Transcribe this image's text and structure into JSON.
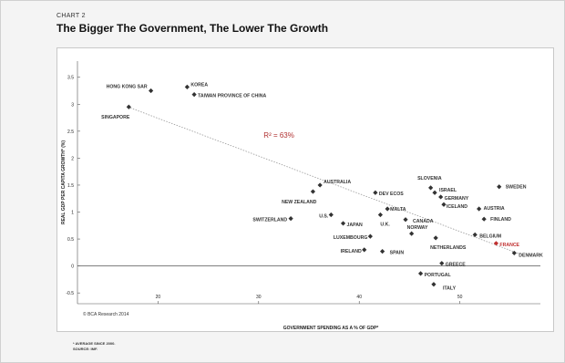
{
  "chart_label": "CHART 2",
  "title": "The Bigger The Government, The Lower The Growth",
  "credit": "© BCA Research 2014",
  "footnotes": [
    "* AVERAGE SINCE 2000.",
    "SOURCE: IMF."
  ],
  "chart_data": {
    "type": "scatter",
    "xlabel": "GOVERNMENT SPENDING AS A % OF GDP*",
    "ylabel": "REAL GDP PER CAPITA GROWTH* (%)",
    "xlim": [
      12,
      58
    ],
    "ylim": [
      -0.7,
      3.8
    ],
    "xticks": [
      20,
      30,
      40,
      50
    ],
    "yticks": [
      {
        "v": 3.5,
        "label": "3.5"
      },
      {
        "v": 3,
        "label": "3"
      },
      {
        "v": 2.5,
        "label": "2.5"
      },
      {
        "v": 2,
        "label": "2"
      },
      {
        "v": 1.5,
        "label": "1.5"
      },
      {
        "v": 1,
        "label": "1"
      },
      {
        "v": 0.5,
        "label": "0.5"
      },
      {
        "v": 0,
        "label": "0"
      },
      {
        "v": -0.5,
        "label": "-0.5"
      }
    ],
    "annotation": "R² = 63%",
    "annotation_color": "#b03030",
    "highlight_color": "#c03030",
    "point_color": "#333333",
    "trendline": {
      "x": [
        17,
        56
      ],
      "y": [
        2.95,
        0.22
      ]
    },
    "points": [
      {
        "label": "HONG KONG SAR",
        "x": 19.3,
        "y": 3.25,
        "anchor": "end",
        "dx": -4,
        "dy": -3
      },
      {
        "label": "KOREA",
        "x": 22.9,
        "y": 3.32,
        "anchor": "start",
        "dx": 4,
        "dy": -1
      },
      {
        "label": "TAIWAN PROVINCE OF CHINA",
        "x": 23.6,
        "y": 3.18,
        "anchor": "start",
        "dx": 4,
        "dy": 3
      },
      {
        "label": "SINGAPORE",
        "x": 17.1,
        "y": 2.95,
        "anchor": "end",
        "dx": 1,
        "dy": 13
      },
      {
        "label": "AUSTRALIA",
        "x": 36.1,
        "y": 1.5,
        "anchor": "start",
        "dx": 4,
        "dy": -2
      },
      {
        "label": "NEW ZEALAND",
        "x": 35.4,
        "y": 1.38,
        "anchor": "end",
        "dx": 4,
        "dy": 13
      },
      {
        "label": "SLOVENIA",
        "x": 47.1,
        "y": 1.45,
        "anchor": "end",
        "dx": 12,
        "dy": -9
      },
      {
        "label": "DEV ECOS",
        "x": 41.6,
        "y": 1.36,
        "anchor": "start",
        "dx": 4,
        "dy": 3
      },
      {
        "label": "ISRAEL",
        "x": 47.5,
        "y": 1.36,
        "anchor": "start",
        "dx": 5,
        "dy": -1
      },
      {
        "label": "GERMANY",
        "x": 48.1,
        "y": 1.28,
        "anchor": "start",
        "dx": 4,
        "dy": 3
      },
      {
        "label": "ICELAND",
        "x": 48.4,
        "y": 1.14,
        "anchor": "start",
        "dx": 3,
        "dy": 4
      },
      {
        "label": "MALTA",
        "x": 42.8,
        "y": 1.06,
        "anchor": "start",
        "dx": 3,
        "dy": 2
      },
      {
        "label": "SWEDEN",
        "x": 53.9,
        "y": 1.47,
        "anchor": "start",
        "dx": 7,
        "dy": 2
      },
      {
        "label": "AUSTRIA",
        "x": 51.9,
        "y": 1.06,
        "anchor": "start",
        "dx": 5,
        "dy": 1
      },
      {
        "label": "FINLAND",
        "x": 52.4,
        "y": 0.87,
        "anchor": "start",
        "dx": 7,
        "dy": 2
      },
      {
        "label": "CANADA",
        "x": 44.6,
        "y": 0.86,
        "anchor": "start",
        "dx": 8,
        "dy": 3
      },
      {
        "label": "U.S.",
        "x": 37.2,
        "y": 0.95,
        "anchor": "end",
        "dx": -3,
        "dy": 3
      },
      {
        "label": "U.K.",
        "x": 42.1,
        "y": 0.95,
        "anchor": "start",
        "dx": 0,
        "dy": 12
      },
      {
        "label": "JAPAN",
        "x": 38.4,
        "y": 0.79,
        "anchor": "start",
        "dx": 4,
        "dy": 3
      },
      {
        "label": "SWITZERLAND",
        "x": 33.2,
        "y": 0.88,
        "anchor": "end",
        "dx": -4,
        "dy": 3
      },
      {
        "label": "NORWAY",
        "x": 45.2,
        "y": 0.6,
        "anchor": "start",
        "dx": -5,
        "dy": -5
      },
      {
        "label": "LUXEMBOURG",
        "x": 41.1,
        "y": 0.55,
        "anchor": "end",
        "dx": -3,
        "dy": 3
      },
      {
        "label": "BELGIUM",
        "x": 51.5,
        "y": 0.58,
        "anchor": "start",
        "dx": 5,
        "dy": 3
      },
      {
        "label": "NETHERLANDS",
        "x": 47.6,
        "y": 0.52,
        "anchor": "start",
        "dx": -6,
        "dy": 12
      },
      {
        "label": "FRANCE",
        "x": 53.6,
        "y": 0.42,
        "anchor": "start",
        "dx": 4,
        "dy": 3,
        "highlight": true
      },
      {
        "label": "DENMARK",
        "x": 55.4,
        "y": 0.24,
        "anchor": "start",
        "dx": 5,
        "dy": 4
      },
      {
        "label": "IRELAND",
        "x": 40.5,
        "y": 0.3,
        "anchor": "end",
        "dx": -3,
        "dy": 3
      },
      {
        "label": "SPAIN",
        "x": 42.3,
        "y": 0.27,
        "anchor": "start",
        "dx": 8,
        "dy": 3
      },
      {
        "label": "GREECE",
        "x": 48.2,
        "y": 0.05,
        "anchor": "start",
        "dx": 4,
        "dy": 3
      },
      {
        "label": "PORTUGAL",
        "x": 46.1,
        "y": -0.14,
        "anchor": "start",
        "dx": 4,
        "dy": 3
      },
      {
        "label": "ITALY",
        "x": 47.4,
        "y": -0.34,
        "anchor": "start",
        "dx": 10,
        "dy": 6
      }
    ]
  }
}
